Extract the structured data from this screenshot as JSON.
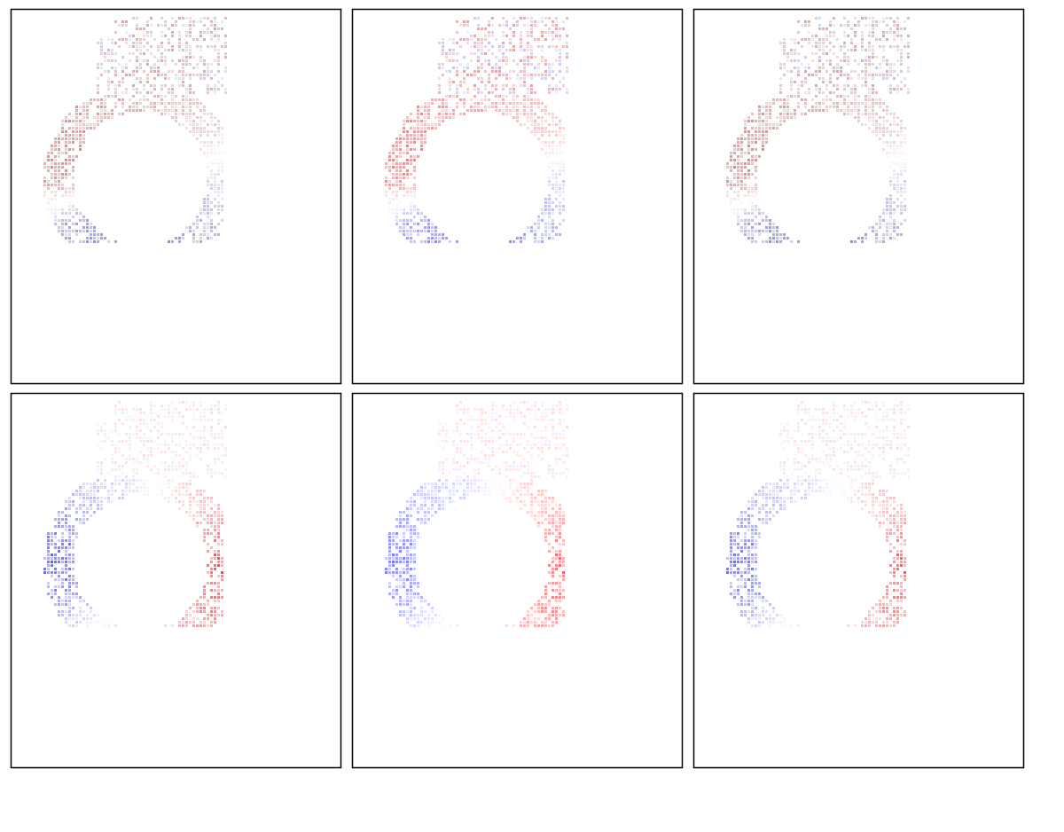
{
  "chart_data": {
    "type": "heatmap",
    "layout": {
      "rows": 2,
      "columns": 3
    },
    "title": "",
    "xlabel": "",
    "ylabel": "",
    "grid": false,
    "legend": "none",
    "colors": {
      "positive": "#e8343a",
      "negative": "#3c3cf0",
      "zero": "#ffffff",
      "frame": "#000000"
    },
    "panels": [
      {
        "label": "",
        "pattern": "ring",
        "center": [
          0.3,
          0.5
        ],
        "sign_regions": [
          {
            "angle_deg": 0,
            "value": -0.25
          },
          {
            "angle_deg": 30,
            "value": -0.35
          },
          {
            "angle_deg": 60,
            "value": -0.55
          },
          {
            "angle_deg": 110,
            "value": -0.65
          },
          {
            "angle_deg": 150,
            "value": -0.45
          },
          {
            "angle_deg": 180,
            "value": 0.6
          },
          {
            "angle_deg": 220,
            "value": 0.55
          },
          {
            "angle_deg": 260,
            "value": 0.45
          },
          {
            "angle_deg": 300,
            "value": 0.35
          },
          {
            "angle_deg": 330,
            "value": 0.25
          }
        ]
      },
      {
        "label": "",
        "pattern": "ring",
        "center": [
          0.3,
          0.5
        ],
        "sign_regions": [
          {
            "angle_deg": 0,
            "value": -0.25
          },
          {
            "angle_deg": 30,
            "value": -0.35
          },
          {
            "angle_deg": 60,
            "value": -0.55
          },
          {
            "angle_deg": 110,
            "value": -0.65
          },
          {
            "angle_deg": 150,
            "value": -0.45
          },
          {
            "angle_deg": 180,
            "value": 0.6
          },
          {
            "angle_deg": 220,
            "value": 0.55
          },
          {
            "angle_deg": 260,
            "value": 0.45
          },
          {
            "angle_deg": 300,
            "value": 0.35
          },
          {
            "angle_deg": 330,
            "value": 0.25
          }
        ]
      },
      {
        "label": "",
        "pattern": "ring",
        "center": [
          0.3,
          0.5
        ],
        "sign_regions": [
          {
            "angle_deg": 0,
            "value": -0.25
          },
          {
            "angle_deg": 30,
            "value": -0.35
          },
          {
            "angle_deg": 60,
            "value": -0.55
          },
          {
            "angle_deg": 110,
            "value": -0.65
          },
          {
            "angle_deg": 150,
            "value": -0.45
          },
          {
            "angle_deg": 180,
            "value": 0.6
          },
          {
            "angle_deg": 220,
            "value": 0.55
          },
          {
            "angle_deg": 260,
            "value": 0.45
          },
          {
            "angle_deg": 300,
            "value": 0.35
          },
          {
            "angle_deg": 330,
            "value": 0.25
          }
        ]
      },
      {
        "label": "",
        "pattern": "ring",
        "center": [
          0.3,
          0.5
        ],
        "sign_regions": [
          {
            "angle_deg": 0,
            "value": 0.85
          },
          {
            "angle_deg": 30,
            "value": 0.6
          },
          {
            "angle_deg": 70,
            "value": 0.3
          },
          {
            "angle_deg": 110,
            "value": 0.2
          },
          {
            "angle_deg": 150,
            "value": -0.45
          },
          {
            "angle_deg": 180,
            "value": -0.8
          },
          {
            "angle_deg": 220,
            "value": -0.4
          },
          {
            "angle_deg": 260,
            "value": -0.2
          },
          {
            "angle_deg": 300,
            "value": 0.2
          },
          {
            "angle_deg": 330,
            "value": 0.45
          }
        ]
      },
      {
        "label": "",
        "pattern": "ring",
        "center": [
          0.3,
          0.5
        ],
        "sign_regions": [
          {
            "angle_deg": 0,
            "value": 0.75
          },
          {
            "angle_deg": 30,
            "value": 0.55
          },
          {
            "angle_deg": 70,
            "value": 0.25
          },
          {
            "angle_deg": 110,
            "value": 0.15
          },
          {
            "angle_deg": 150,
            "value": -0.4
          },
          {
            "angle_deg": 180,
            "value": -0.7
          },
          {
            "angle_deg": 220,
            "value": -0.35
          },
          {
            "angle_deg": 260,
            "value": -0.2
          },
          {
            "angle_deg": 300,
            "value": 0.2
          },
          {
            "angle_deg": 330,
            "value": 0.4
          }
        ]
      },
      {
        "label": "",
        "pattern": "ring",
        "center": [
          0.3,
          0.5
        ],
        "sign_regions": [
          {
            "angle_deg": 0,
            "value": 0.8
          },
          {
            "angle_deg": 30,
            "value": 0.55
          },
          {
            "angle_deg": 70,
            "value": 0.25
          },
          {
            "angle_deg": 110,
            "value": 0.15
          },
          {
            "angle_deg": 150,
            "value": -0.45
          },
          {
            "angle_deg": 180,
            "value": -0.75
          },
          {
            "angle_deg": 220,
            "value": -0.35
          },
          {
            "angle_deg": 260,
            "value": -0.2
          },
          {
            "angle_deg": 300,
            "value": 0.2
          },
          {
            "angle_deg": 330,
            "value": 0.4
          }
        ]
      }
    ]
  }
}
